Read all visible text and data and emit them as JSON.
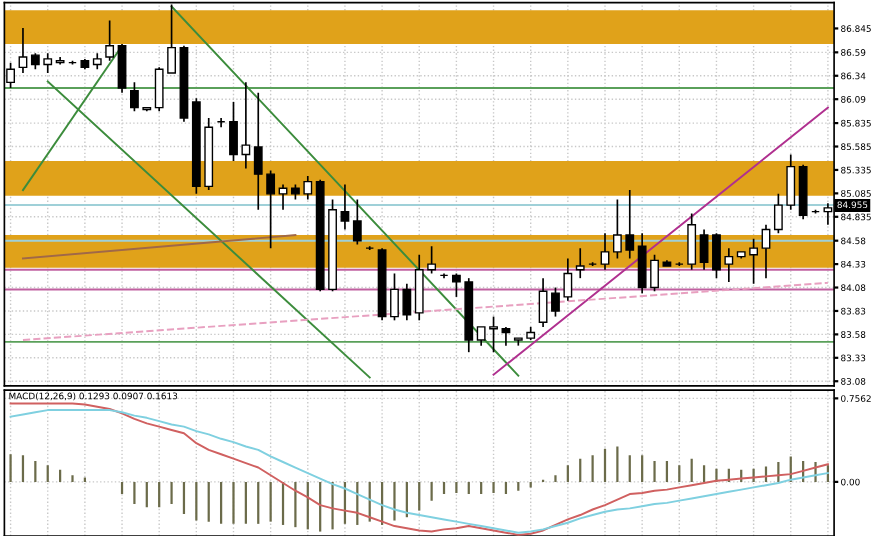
{
  "chart_data": [
    {
      "type": "candlestick",
      "categories": [
        null,
        null,
        null,
        null,
        null,
        null,
        null,
        null,
        null,
        null,
        null,
        null,
        null,
        null,
        null,
        null,
        null,
        null,
        null,
        null,
        null,
        null,
        null,
        null,
        null,
        null,
        null,
        null,
        null,
        null,
        null,
        null,
        null,
        null,
        null,
        null,
        null,
        null,
        null,
        null,
        null,
        null,
        null,
        null,
        null,
        null,
        null,
        null,
        null,
        null,
        null,
        null,
        null,
        null,
        null,
        null,
        null,
        null,
        null,
        null,
        null,
        null,
        null,
        null,
        null,
        null,
        null
      ],
      "ohlc": [
        [
          86.27,
          86.48,
          86.21,
          86.41
        ],
        [
          86.43,
          86.85,
          86.37,
          86.54
        ],
        [
          86.56,
          86.58,
          86.41,
          86.46
        ],
        [
          86.46,
          86.58,
          86.37,
          86.52
        ],
        [
          86.48,
          86.54,
          86.46,
          86.5
        ],
        [
          86.48,
          86.5,
          86.46,
          86.48
        ],
        [
          86.5,
          86.52,
          86.41,
          86.43
        ],
        [
          86.46,
          86.58,
          86.41,
          86.52
        ],
        [
          86.54,
          86.93,
          86.5,
          86.66
        ],
        [
          86.66,
          86.68,
          86.16,
          86.21
        ],
        [
          86.18,
          86.27,
          85.96,
          86.0
        ],
        [
          85.98,
          86.0,
          85.96,
          86.0
        ],
        [
          86.0,
          86.43,
          85.96,
          86.41
        ],
        [
          86.37,
          87.1,
          86.37,
          86.64
        ],
        [
          86.64,
          86.66,
          85.85,
          85.89
        ],
        [
          86.06,
          86.1,
          85.08,
          85.16
        ],
        [
          85.16,
          85.89,
          85.12,
          85.79
        ],
        [
          85.85,
          85.89,
          85.79,
          85.85
        ],
        [
          85.85,
          86.06,
          85.43,
          85.5
        ],
        [
          85.5,
          86.27,
          85.35,
          85.6
        ],
        [
          85.58,
          86.16,
          84.91,
          85.29
        ],
        [
          85.29,
          85.33,
          84.5,
          85.08
        ],
        [
          85.08,
          85.18,
          84.91,
          85.14
        ],
        [
          85.14,
          85.18,
          85.02,
          85.08
        ],
        [
          85.08,
          85.27,
          85.02,
          85.21
        ],
        [
          85.21,
          85.23,
          84.04,
          84.06
        ],
        [
          84.06,
          85.02,
          84.04,
          84.91
        ],
        [
          84.89,
          85.18,
          84.7,
          84.79
        ],
        [
          84.79,
          85.02,
          84.54,
          84.58
        ],
        [
          84.5,
          84.52,
          84.48,
          84.5
        ],
        [
          84.48,
          84.5,
          83.73,
          83.77
        ],
        [
          83.77,
          84.23,
          83.73,
          84.06
        ],
        [
          84.06,
          84.12,
          83.73,
          83.79
        ],
        [
          83.81,
          84.43,
          83.73,
          84.27
        ],
        [
          84.27,
          84.52,
          84.23,
          84.33
        ],
        [
          84.21,
          84.23,
          84.18,
          84.21
        ],
        [
          84.21,
          84.23,
          83.98,
          84.14
        ],
        [
          84.14,
          84.18,
          83.39,
          83.52
        ],
        [
          83.52,
          83.66,
          83.46,
          83.66
        ],
        [
          83.64,
          83.77,
          83.39,
          83.66
        ],
        [
          83.64,
          83.66,
          83.46,
          83.6
        ],
        [
          83.52,
          83.54,
          83.46,
          83.54
        ],
        [
          83.54,
          83.66,
          83.52,
          83.6
        ],
        [
          83.71,
          84.18,
          83.66,
          84.04
        ],
        [
          84.02,
          84.08,
          83.77,
          83.83
        ],
        [
          83.98,
          84.39,
          83.94,
          84.23
        ],
        [
          84.27,
          84.5,
          84.18,
          84.31
        ],
        [
          84.33,
          84.35,
          84.31,
          84.33
        ],
        [
          84.33,
          84.66,
          84.27,
          84.46
        ],
        [
          84.46,
          85.02,
          84.39,
          84.64
        ],
        [
          84.64,
          85.12,
          84.39,
          84.48
        ],
        [
          84.52,
          84.66,
          84.02,
          84.08
        ],
        [
          84.08,
          84.43,
          84.04,
          84.37
        ],
        [
          84.35,
          84.37,
          84.31,
          84.31
        ],
        [
          84.33,
          84.35,
          84.31,
          84.33
        ],
        [
          84.33,
          84.87,
          84.27,
          84.75
        ],
        [
          84.64,
          84.7,
          84.27,
          84.35
        ],
        [
          84.64,
          84.66,
          84.18,
          84.27
        ],
        [
          84.33,
          84.5,
          84.14,
          84.41
        ],
        [
          84.41,
          84.46,
          84.39,
          84.46
        ],
        [
          84.43,
          84.6,
          84.12,
          84.5
        ],
        [
          84.5,
          84.75,
          84.18,
          84.7
        ],
        [
          84.7,
          85.08,
          84.66,
          84.96
        ],
        [
          84.96,
          85.5,
          84.91,
          85.37
        ],
        [
          85.37,
          85.39,
          84.81,
          84.85
        ],
        [
          84.89,
          84.91,
          84.87,
          84.89
        ],
        [
          84.89,
          84.98,
          84.75,
          84.93
        ]
      ],
      "series": [
        {
          "type": "line",
          "values": [
            null,
            null,
            null,
            null,
            null,
            null,
            null,
            null,
            null,
            null,
            null,
            null,
            null,
            87.08,
            null,
            null,
            null,
            null,
            null,
            null,
            null,
            null,
            null,
            null,
            null,
            null,
            null,
            null,
            null,
            null,
            null,
            null,
            null,
            null,
            null,
            null,
            null,
            null,
            null,
            null,
            null,
            83.14,
            null,
            null,
            null,
            null,
            null,
            null,
            null,
            null,
            null,
            null,
            null,
            null,
            null,
            null,
            null,
            null,
            null,
            null,
            null,
            null,
            null,
            null,
            null,
            null,
            null
          ],
          "color": "#3c8c3c",
          "line_style": "solid"
        },
        {
          "type": "line",
          "values": [
            null,
            85.12,
            null,
            null,
            null,
            null,
            null,
            null,
            null,
            86.66,
            null,
            null,
            null,
            null,
            null,
            null,
            null,
            null,
            null,
            null,
            null,
            null,
            null,
            null,
            null,
            null,
            null,
            null,
            null,
            null,
            null,
            null,
            null,
            null,
            null,
            null,
            null,
            null,
            null,
            null,
            null,
            null,
            null,
            null,
            null,
            null,
            null,
            null,
            null,
            null,
            null,
            null,
            null,
            null,
            null,
            null,
            null,
            null,
            null,
            null,
            null,
            null,
            null,
            null,
            null,
            null,
            null
          ],
          "color": "#3c8c3c",
          "line_style": "solid"
        },
        {
          "type": "line",
          "values": [
            null,
            null,
            null,
            86.28,
            null,
            null,
            null,
            null,
            null,
            null,
            null,
            null,
            null,
            null,
            null,
            null,
            null,
            null,
            null,
            null,
            null,
            null,
            null,
            null,
            null,
            null,
            null,
            null,
            null,
            83.12,
            null,
            null,
            null,
            null,
            null,
            null,
            null,
            null,
            null,
            null,
            null,
            null,
            null,
            null,
            null,
            null,
            null,
            null,
            null,
            null,
            null,
            null,
            null,
            null,
            null,
            null,
            null,
            null,
            null,
            null,
            null,
            null,
            null,
            null,
            null,
            null,
            null
          ],
          "color": "#3c8c3c",
          "line_style": "solid"
        },
        {
          "type": "line",
          "values": [
            null,
            null,
            null,
            null,
            null,
            null,
            null,
            null,
            null,
            null,
            null,
            null,
            null,
            null,
            null,
            null,
            null,
            null,
            null,
            null,
            null,
            null,
            null,
            null,
            null,
            null,
            null,
            null,
            null,
            null,
            null,
            null,
            null,
            null,
            null,
            null,
            null,
            null,
            null,
            83.15,
            null,
            null,
            null,
            null,
            null,
            null,
            null,
            null,
            null,
            null,
            null,
            null,
            null,
            null,
            null,
            null,
            null,
            null,
            null,
            null,
            null,
            null,
            null,
            null,
            null,
            null,
            86.0
          ],
          "color": "#b0308f",
          "line_style": "solid"
        },
        {
          "type": "line",
          "values": [
            null,
            83.52,
            null,
            null,
            null,
            null,
            null,
            null,
            null,
            null,
            null,
            null,
            null,
            null,
            null,
            null,
            null,
            null,
            null,
            null,
            null,
            null,
            null,
            null,
            null,
            null,
            null,
            null,
            null,
            null,
            null,
            null,
            null,
            null,
            null,
            null,
            null,
            null,
            null,
            null,
            null,
            null,
            null,
            null,
            null,
            null,
            null,
            null,
            null,
            null,
            null,
            null,
            null,
            null,
            null,
            null,
            null,
            null,
            null,
            null,
            null,
            null,
            null,
            null,
            null,
            null,
            84.13
          ],
          "color": "#e8a0c0",
          "line_style": "dashed"
        },
        {
          "type": "line",
          "values": [
            null,
            84.39,
            null,
            null,
            null,
            null,
            null,
            null,
            null,
            null,
            null,
            null,
            null,
            null,
            null,
            null,
            null,
            null,
            null,
            null,
            null,
            null,
            null,
            84.64,
            null,
            null,
            null,
            null,
            null,
            null,
            null,
            null,
            null,
            null,
            null,
            null,
            null,
            null,
            null,
            null,
            null,
            null,
            null,
            null,
            null,
            null,
            null,
            null,
            null,
            null,
            null,
            null,
            null,
            null,
            null,
            null,
            null,
            null,
            null,
            null,
            null,
            null,
            null,
            null,
            null,
            null,
            null
          ],
          "color": "#a06848",
          "line_style": "solid"
        }
      ],
      "bands": [
        {
          "axis": "y",
          "from": 85.06,
          "to": 85.43,
          "color": "#e0a21a"
        },
        {
          "axis": "y",
          "from": 86.68,
          "to": 87.04,
          "color": "#e0a21a"
        },
        {
          "axis": "y",
          "from": 84.29,
          "to": 84.64,
          "color": "#e0a21a"
        }
      ],
      "ref_lines": [
        {
          "axis": "y",
          "value": 86.21,
          "color": "#5aa05a",
          "line_style": "solid"
        },
        {
          "axis": "y",
          "value": 83.5,
          "color": "#5aa05a",
          "line_style": "solid"
        },
        {
          "axis": "y",
          "value": 84.27,
          "color": "#c060a0",
          "line_style": "solid"
        },
        {
          "axis": "y",
          "value": 84.06,
          "color": "#c060a0",
          "line_style": "solid"
        },
        {
          "axis": "y",
          "value": 84.58,
          "color": "#9fd0d8",
          "line_style": "solid"
        },
        {
          "axis": "y",
          "value": 84.96,
          "color": "#9fd0d8",
          "line_style": "solid"
        }
      ],
      "annotations": [
        {
          "text": "84.955",
          "y": 84.955
        }
      ],
      "ylim": [
        83.03,
        87.12
      ],
      "yticks": [
        86.845,
        86.59,
        86.34,
        86.09,
        85.835,
        85.585,
        85.335,
        85.085,
        84.835,
        84.58,
        84.33,
        84.08,
        83.83,
        83.58,
        83.33,
        83.08
      ],
      "grid": true
    },
    {
      "type": "bar",
      "title": "MACD(12,26,9) 0.1293 0.0907 0.1613",
      "categories": [
        null,
        null,
        null,
        null,
        null,
        null,
        null,
        null,
        null,
        null,
        null,
        null,
        null,
        null,
        null,
        null,
        null,
        null,
        null,
        null,
        null,
        null,
        null,
        null,
        null,
        null,
        null,
        null,
        null,
        null,
        null,
        null,
        null,
        null,
        null,
        null,
        null,
        null,
        null,
        null,
        null,
        null,
        null,
        null,
        null,
        null,
        null,
        null,
        null,
        null,
        null,
        null,
        null,
        null,
        null,
        null,
        null,
        null,
        null,
        null,
        null,
        null,
        null,
        null,
        null,
        null,
        null
      ],
      "series": [
        {
          "type": "bar",
          "color": "#6b6b4a",
          "values": [
            0.25,
            0.24,
            0.19,
            0.15,
            0.11,
            0.06,
            0.04,
            0,
            0,
            -0.11,
            -0.2,
            -0.23,
            -0.23,
            -0.2,
            -0.29,
            -0.35,
            -0.36,
            -0.38,
            -0.38,
            -0.38,
            -0.38,
            -0.36,
            -0.39,
            -0.41,
            -0.43,
            -0.45,
            -0.43,
            -0.38,
            -0.39,
            -0.36,
            -0.39,
            -0.35,
            -0.32,
            -0.26,
            -0.17,
            -0.11,
            -0.1,
            -0.11,
            -0.11,
            -0.1,
            -0.11,
            -0.08,
            -0.05,
            0.02,
            0.06,
            0.15,
            0.21,
            0.24,
            0.3,
            0.32,
            0.24,
            0.24,
            0.19,
            0.19,
            0.15,
            0.21,
            0.15,
            0.12,
            0.12,
            0.11,
            0.12,
            0.14,
            0.18,
            0.23,
            0.19,
            0.18,
            0.15
          ]
        },
        {
          "type": "line",
          "color": "#d06060",
          "values": [
            0.71,
            0.71,
            0.71,
            0.71,
            0.71,
            0.71,
            0.7,
            0.68,
            0.66,
            0.62,
            0.57,
            0.53,
            0.5,
            0.47,
            0.44,
            0.35,
            0.29,
            0.25,
            0.21,
            0.17,
            0.13,
            0.06,
            -0.01,
            -0.08,
            -0.14,
            -0.21,
            -0.24,
            -0.26,
            -0.28,
            -0.32,
            -0.36,
            -0.4,
            -0.42,
            -0.44,
            -0.45,
            -0.43,
            -0.42,
            -0.4,
            -0.42,
            -0.44,
            -0.46,
            -0.48,
            -0.47,
            -0.44,
            -0.39,
            -0.34,
            -0.3,
            -0.25,
            -0.21,
            -0.16,
            -0.11,
            -0.1,
            -0.08,
            -0.07,
            -0.05,
            -0.03,
            -0.01,
            0.01,
            0.02,
            0.03,
            0.04,
            0.05,
            0.06,
            0.07,
            0.1,
            0.13,
            0.16
          ]
        },
        {
          "type": "line",
          "color": "#7fd0e0",
          "values": [
            0.59,
            0.61,
            0.63,
            0.65,
            0.65,
            0.65,
            0.65,
            0.65,
            0.65,
            0.63,
            0.6,
            0.58,
            0.55,
            0.52,
            0.5,
            0.46,
            0.43,
            0.39,
            0.36,
            0.32,
            0.29,
            0.23,
            0.18,
            0.13,
            0.08,
            0.03,
            -0.02,
            -0.06,
            -0.11,
            -0.16,
            -0.21,
            -0.25,
            -0.28,
            -0.3,
            -0.32,
            -0.34,
            -0.36,
            -0.38,
            -0.4,
            -0.42,
            -0.44,
            -0.46,
            -0.45,
            -0.43,
            -0.4,
            -0.37,
            -0.33,
            -0.3,
            -0.27,
            -0.25,
            -0.24,
            -0.22,
            -0.2,
            -0.19,
            -0.17,
            -0.15,
            -0.13,
            -0.11,
            -0.09,
            -0.07,
            -0.05,
            -0.03,
            -0.01,
            0.02,
            0.04,
            0.06,
            0.08
          ]
        }
      ],
      "ylim": [
        -0.49,
        0.83
      ],
      "yticks": [
        0.7562,
        {
          "value": 0,
          "label": "0.00"
        }
      ],
      "grid": true
    }
  ]
}
